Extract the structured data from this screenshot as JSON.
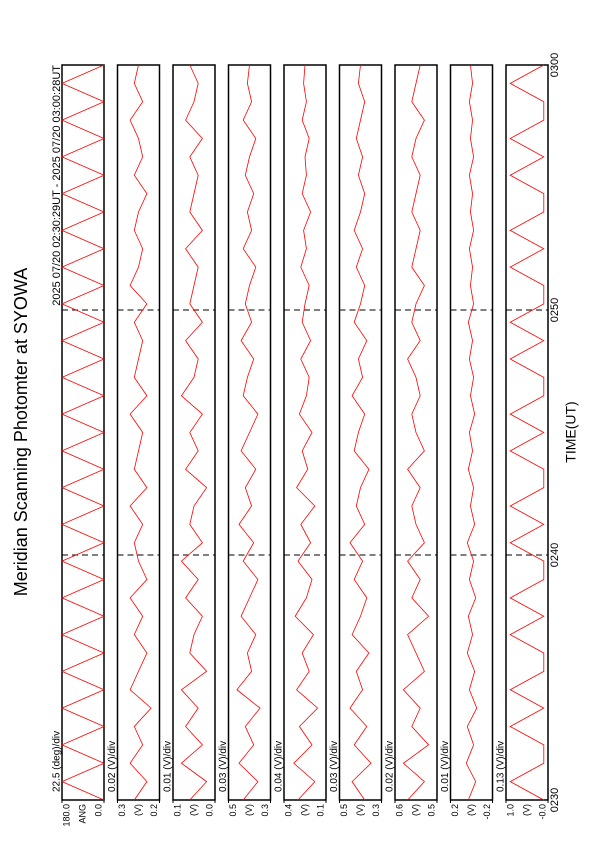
{
  "chart_data": {
    "type": "line",
    "title": "Meridian Scanning Photomter at SYOWA",
    "subtitle": "2025 07/20 02:30:29UT - 2025 07/20 03:00:28UT",
    "xlabel": "TIME(UT)",
    "xlim": [
      0,
      30
    ],
    "xticks": [
      {
        "value": 0,
        "label": "0230"
      },
      {
        "value": 10,
        "label": "0240"
      },
      {
        "value": 20,
        "label": "0250"
      },
      {
        "value": 30,
        "label": "0300"
      }
    ],
    "x": [
      0,
      0.75,
      1.5,
      2.25,
      3,
      3.75,
      4.5,
      5.25,
      6,
      6.75,
      7.5,
      8.25,
      9,
      9.75,
      10.5,
      11.25,
      12,
      12.75,
      13.5,
      14.25,
      15,
      15.75,
      16.5,
      17.25,
      18,
      18.75,
      19.5,
      20.25,
      21,
      21.75,
      22.5,
      23.25,
      24,
      24.75,
      25.5,
      26.25,
      27,
      27.75,
      28.5,
      29.25,
      30
    ],
    "panels": [
      {
        "unit": "ANG",
        "scale": "22.5 (deg)/div",
        "color": "#ff0000",
        "ylim": [
          0,
          180
        ],
        "yticks": [
          {
            "value": 180,
            "label": "180.0"
          },
          {
            "value": 0,
            "label": "0.0"
          }
        ],
        "values": [
          0,
          180,
          0,
          180,
          0,
          180,
          0,
          180,
          0,
          180,
          0,
          180,
          0,
          180,
          0,
          180,
          0,
          180,
          0,
          180,
          0,
          180,
          0,
          180,
          0,
          180,
          0,
          180,
          0,
          180,
          0,
          180,
          0,
          180,
          0,
          180,
          0,
          180,
          0,
          180,
          0
        ]
      },
      {
        "unit": "(V)",
        "scale": "0.02 (V)/div",
        "color": "#ff0000",
        "ylim": [
          0.2,
          0.3
        ],
        "yticks": [
          0.3,
          0.2
        ],
        "values": [
          0.26,
          0.23,
          0.27,
          0.24,
          0.26,
          0.22,
          0.27,
          0.25,
          0.23,
          0.26,
          0.24,
          0.27,
          0.23,
          0.25,
          0.26,
          0.24,
          0.27,
          0.23,
          0.26,
          0.25,
          0.24,
          0.27,
          0.23,
          0.26,
          0.25,
          0.24,
          0.26,
          0.23,
          0.27,
          0.25,
          0.24,
          0.26,
          0.25,
          0.23,
          0.26,
          0.24,
          0.25,
          0.27,
          0.24,
          0.26,
          0.25
        ]
      },
      {
        "unit": "(V)",
        "scale": "0.01 (V)/div",
        "color": "#ff0000",
        "ylim": [
          0,
          0.1
        ],
        "yticks": [
          0.1,
          {
            "value": 0,
            "label": "0.0"
          }
        ],
        "values": [
          0.06,
          0.02,
          0.08,
          0.03,
          0.07,
          0.04,
          0.08,
          0.02,
          0.06,
          0.05,
          0.03,
          0.07,
          0.04,
          0.08,
          0.03,
          0.06,
          0.05,
          0.02,
          0.07,
          0.04,
          0.06,
          0.03,
          0.08,
          0.05,
          0.04,
          0.07,
          0.03,
          0.06,
          0.05,
          0.04,
          0.07,
          0.03,
          0.06,
          0.05,
          0.04,
          0.06,
          0.03,
          0.07,
          0.05,
          0.04,
          0.06
        ]
      },
      {
        "unit": "(V)",
        "scale": "0.03 (V)/div",
        "color": "#ff0000",
        "ylim": [
          0.3,
          0.5
        ],
        "yticks": [
          0.5,
          0.3
        ],
        "values": [
          0.43,
          0.36,
          0.45,
          0.38,
          0.42,
          0.35,
          0.46,
          0.39,
          0.41,
          0.37,
          0.44,
          0.4,
          0.36,
          0.43,
          0.38,
          0.45,
          0.39,
          0.42,
          0.37,
          0.44,
          0.4,
          0.36,
          0.43,
          0.41,
          0.38,
          0.44,
          0.39,
          0.42,
          0.4,
          0.37,
          0.43,
          0.39,
          0.41,
          0.38,
          0.42,
          0.4,
          0.37,
          0.43,
          0.39,
          0.41,
          0.4
        ]
      },
      {
        "unit": "(V)",
        "scale": "0.04 (V)/div",
        "color": "#ff0000",
        "ylim": [
          0.1,
          0.4
        ],
        "yticks": [
          0.4,
          0.1
        ],
        "values": [
          0.3,
          0.18,
          0.33,
          0.2,
          0.29,
          0.16,
          0.31,
          0.22,
          0.27,
          0.19,
          0.32,
          0.24,
          0.2,
          0.3,
          0.21,
          0.28,
          0.18,
          0.31,
          0.23,
          0.27,
          0.2,
          0.29,
          0.24,
          0.22,
          0.28,
          0.21,
          0.27,
          0.25,
          0.22,
          0.28,
          0.24,
          0.26,
          0.21,
          0.27,
          0.24,
          0.25,
          0.22,
          0.27,
          0.24,
          0.26,
          0.25
        ]
      },
      {
        "unit": "(V)",
        "scale": "0.03 (V)/div",
        "color": "#ff0000",
        "ylim": [
          0.3,
          0.5
        ],
        "yticks": [
          0.5,
          0.3
        ],
        "values": [
          0.38,
          0.44,
          0.35,
          0.43,
          0.37,
          0.45,
          0.39,
          0.42,
          0.36,
          0.44,
          0.4,
          0.37,
          0.43,
          0.39,
          0.45,
          0.38,
          0.42,
          0.4,
          0.36,
          0.43,
          0.41,
          0.38,
          0.44,
          0.39,
          0.41,
          0.37,
          0.43,
          0.4,
          0.38,
          0.42,
          0.39,
          0.43,
          0.4,
          0.38,
          0.41,
          0.39,
          0.42,
          0.4,
          0.38,
          0.41,
          0.4
        ]
      },
      {
        "unit": "(V)",
        "scale": "0.02 (V)/div",
        "color": "#ff0000",
        "ylim": [
          0.5,
          0.6
        ],
        "yticks": [
          0.6,
          0.5
        ],
        "values": [
          0.57,
          0.53,
          0.58,
          0.52,
          0.56,
          0.54,
          0.58,
          0.53,
          0.55,
          0.57,
          0.52,
          0.56,
          0.54,
          0.57,
          0.53,
          0.55,
          0.56,
          0.54,
          0.57,
          0.53,
          0.55,
          0.56,
          0.54,
          0.55,
          0.57,
          0.54,
          0.56,
          0.55,
          0.53,
          0.56,
          0.55,
          0.54,
          0.56,
          0.55,
          0.54,
          0.56,
          0.55,
          0.53,
          0.56,
          0.55,
          0.54
        ]
      },
      {
        "unit": "(V)",
        "scale": "0.01 (V)/div",
        "color": "#ff0000",
        "ylim": [
          -0.2,
          0.2
        ],
        "yticks": [
          0.2,
          -0.2
        ],
        "values": [
          0.03,
          -0.04,
          0.05,
          -0.02,
          0.04,
          -0.05,
          0.02,
          -0.03,
          0.04,
          -0.01,
          0.03,
          -0.04,
          0.02,
          -0.02,
          0.04,
          -0.03,
          0.01,
          -0.02,
          0.03,
          -0.01,
          0.02,
          -0.03,
          0.01,
          -0.02,
          0.02,
          -0.01,
          0.03,
          -0.02,
          0.01,
          -0.01,
          0.02,
          -0.02,
          0.01,
          -0.01,
          0.02,
          -0.02,
          0.01,
          -0.01,
          0.02,
          -0.01,
          0.01
        ]
      },
      {
        "unit": "(V)",
        "scale": "0.13 (V)/div",
        "color": "#ff0000",
        "ylim": [
          0,
          1
        ],
        "yticks": [
          {
            "value": 1,
            "label": "1.0"
          },
          {
            "value": 0,
            "label": "-0.0"
          }
        ],
        "values": [
          0.1,
          0.9,
          0.1,
          0.1,
          0.9,
          0.1,
          0.9,
          0.1,
          0.1,
          0.9,
          0.1,
          0.9,
          0.1,
          0.1,
          0.9,
          0.1,
          0.9,
          0.1,
          0.1,
          0.9,
          0.1,
          0.9,
          0.1,
          0.1,
          0.9,
          0.1,
          0.9,
          0.1,
          0.1,
          0.9,
          0.1,
          0.9,
          0.1,
          0.1,
          0.9,
          0.1,
          0.9,
          0.1,
          0.1,
          0.9,
          0.1
        ]
      }
    ]
  }
}
